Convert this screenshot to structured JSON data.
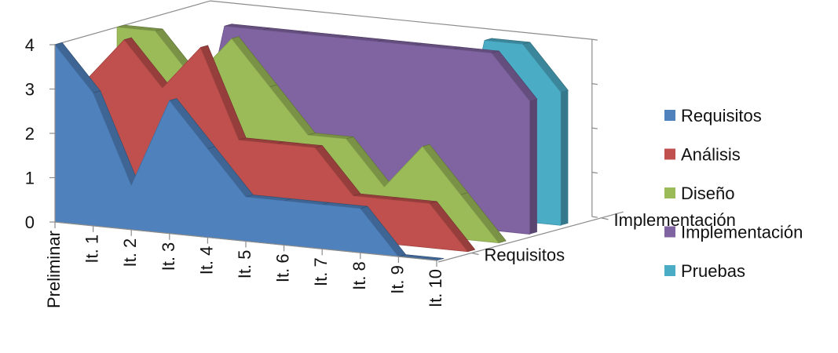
{
  "chart_data": {
    "type": "area",
    "variant": "3d",
    "title": "",
    "xlabel": "",
    "ylabel": "",
    "ylim": [
      0,
      4
    ],
    "y_ticks": [
      "0",
      "1",
      "2",
      "3",
      "4"
    ],
    "categories": [
      "Preliminar",
      "It. 1",
      "It. 2",
      "It. 3",
      "It. 4",
      "It. 5",
      "It. 6",
      "It. 7",
      "It. 8",
      "It. 9",
      "It. 10"
    ],
    "depth_axis_labels": [
      "Requisitos",
      "Implementación"
    ],
    "legend_position": "right",
    "series": [
      {
        "name": "Requisitos",
        "color": "#4F81BD",
        "values": [
          4,
          3,
          1,
          3,
          2,
          1,
          1,
          1,
          1,
          0,
          0
        ]
      },
      {
        "name": "Análisis",
        "color": "#C0504D",
        "values": [
          3,
          4,
          3,
          4,
          2,
          2,
          2,
          1,
          1,
          1,
          0
        ]
      },
      {
        "name": "Diseño",
        "color": "#9BBB59",
        "values": [
          4,
          4,
          3,
          4,
          3,
          2,
          2,
          1,
          2,
          1,
          0
        ]
      },
      {
        "name": "Implementación",
        "color": "#8064A2",
        "values": [
          0,
          0,
          4,
          4,
          4,
          4,
          4,
          4,
          4,
          4,
          3
        ]
      },
      {
        "name": "Pruebas",
        "color": "#4BACC6",
        "values": [
          0,
          0,
          0,
          0,
          0,
          0,
          0,
          0,
          4,
          4,
          3
        ]
      }
    ]
  }
}
